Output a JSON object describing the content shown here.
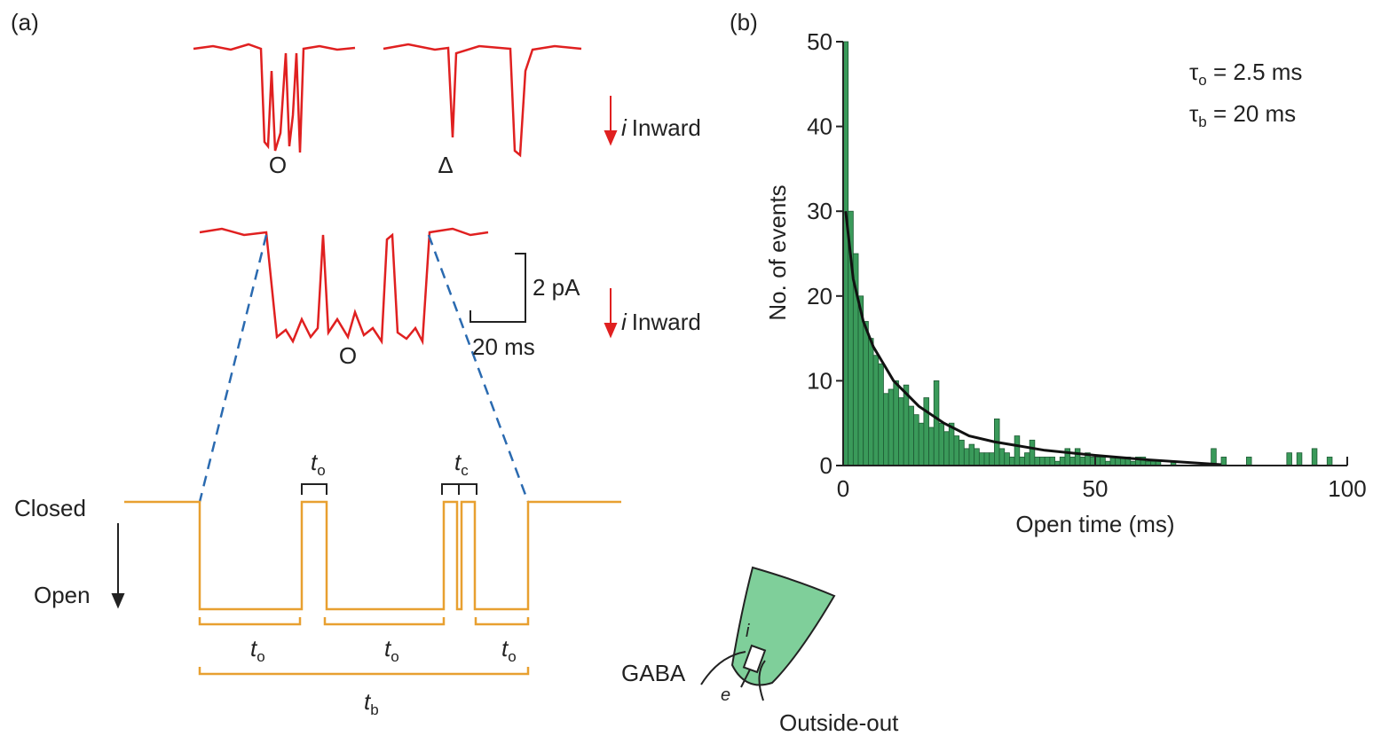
{
  "panel_a": {
    "label": "(a)",
    "trace_marks": [
      "O",
      "Δ",
      "O"
    ],
    "current_labels": [
      {
        "symbol": "i",
        "text": "Inward"
      },
      {
        "symbol": "i",
        "text": "Inward"
      }
    ],
    "scale_bar": {
      "y": "2 pA",
      "x": "20 ms"
    },
    "states": [
      "Closed",
      "Open"
    ],
    "intervals": [
      {
        "t": "t",
        "sub": "o"
      },
      {
        "t": "t",
        "sub": "c"
      },
      {
        "t": "t",
        "sub": "o"
      },
      {
        "t": "t",
        "sub": "o"
      },
      {
        "t": "t",
        "sub": "o"
      },
      {
        "t": "t",
        "sub": "b"
      }
    ],
    "inset": {
      "agonist": "GABA",
      "electron": "e",
      "current": "i",
      "config": "Outside-out"
    }
  },
  "chart_data": {
    "type": "histogram",
    "panel_label": "(b)",
    "x_label": "Open time (ms)",
    "y_label": "No. of events",
    "annotations": [
      {
        "symbol": "τ",
        "sub": "o",
        "text": " = 2.5 ms"
      },
      {
        "symbol": "τ",
        "sub": "b",
        "text": " = 20 ms"
      }
    ],
    "bins": [
      0,
      1,
      2,
      3,
      4,
      5,
      6,
      7,
      8,
      9,
      10,
      11,
      12,
      13,
      14,
      15,
      16,
      17,
      18,
      19,
      20,
      21,
      22,
      23,
      24,
      25,
      26,
      27,
      28,
      29,
      30,
      31,
      32,
      33,
      34,
      35,
      36,
      37,
      38,
      39,
      40,
      41,
      42,
      43,
      44,
      45,
      46,
      47,
      48,
      49,
      50,
      51,
      52,
      53,
      54,
      55,
      56,
      57,
      58,
      59,
      60,
      61,
      62,
      63,
      64,
      65,
      66,
      67,
      68,
      69,
      70,
      71,
      72,
      73,
      74,
      75,
      76,
      77,
      78,
      79,
      80,
      81,
      82,
      83,
      84,
      85,
      86,
      87,
      88,
      89,
      90,
      91,
      92,
      93,
      94,
      95,
      96,
      97,
      98,
      99,
      100
    ],
    "values": [
      50,
      30,
      25,
      20,
      17,
      15,
      13,
      12,
      8.5,
      9,
      10,
      8,
      9.5,
      7,
      6,
      5,
      8,
      4.5,
      10,
      5,
      4,
      5,
      3.5,
      3,
      2,
      2.5,
      2,
      1.5,
      1.5,
      1.5,
      5.5,
      2,
      1.5,
      1,
      3.5,
      1,
      1.5,
      3,
      1,
      1,
      1,
      1,
      0.5,
      1,
      2,
      1,
      2,
      1,
      1.5,
      1,
      1,
      1,
      0.5,
      1,
      1,
      1,
      1,
      0.5,
      1,
      1,
      0.5,
      0.5,
      0.5,
      0,
      0,
      0.5,
      0,
      0,
      0,
      0,
      0,
      0,
      0,
      2,
      0,
      1,
      0,
      0,
      0,
      0,
      1,
      0,
      0,
      0,
      0,
      0,
      0,
      0,
      1.5,
      0,
      1.5,
      0,
      0,
      2,
      0,
      0,
      1,
      0,
      0,
      0
    ],
    "color": "#3a9a5a",
    "fit": {
      "x": [
        0.5,
        2,
        4,
        6,
        8,
        10,
        15,
        20,
        25,
        30,
        40,
        50,
        60,
        70,
        75
      ],
      "values": [
        30,
        22,
        17,
        14,
        12,
        10,
        7,
        5,
        3.5,
        2.8,
        1.8,
        1.2,
        0.7,
        0.3,
        0.1
      ],
      "color": "#111111"
    },
    "xlim": [
      0,
      100
    ],
    "ylim": [
      0,
      50
    ],
    "xticks": [
      0,
      50,
      100
    ],
    "yticks": [
      0,
      10,
      20,
      30,
      40,
      50
    ]
  }
}
